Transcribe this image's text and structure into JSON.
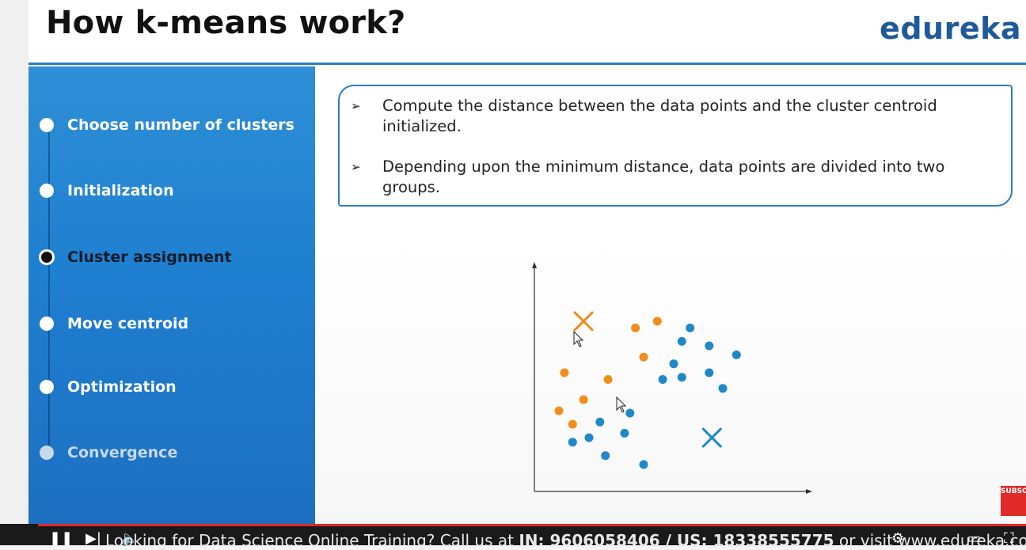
{
  "slide": {
    "title": "How k-means work?",
    "logo": "edureka",
    "colors": {
      "accent": "#2b7dc3",
      "sidebar": "#1f7fd0",
      "orange": "#f28c1a",
      "blue": "#1e88c8"
    }
  },
  "steps": [
    {
      "label": "Choose number of clusters",
      "state": "done"
    },
    {
      "label": "Initialization",
      "state": "done"
    },
    {
      "label": "Cluster assignment",
      "state": "active"
    },
    {
      "label": "Move centroid",
      "state": "upcoming"
    },
    {
      "label": "Optimization",
      "state": "upcoming"
    },
    {
      "label": "Convergence",
      "state": "dim"
    }
  ],
  "bullets": [
    "Compute the distance between the data points and the cluster centroid initialized.",
    "Depending upon the minimum distance, data points are divided into two groups."
  ],
  "chart_data": {
    "type": "scatter",
    "xlim": [
      0,
      10
    ],
    "ylim": [
      0,
      10
    ],
    "grid": false,
    "series": [
      {
        "color": "#f28c1a",
        "points": [
          [
            3.7,
            7.3
          ],
          [
            4.5,
            7.6
          ],
          [
            4.0,
            6.0
          ],
          [
            1.1,
            5.3
          ],
          [
            2.7,
            5.0
          ],
          [
            1.8,
            4.1
          ],
          [
            0.9,
            3.6
          ],
          [
            1.4,
            3.0
          ]
        ]
      },
      {
        "color": "#1e88c8",
        "points": [
          [
            5.7,
            7.3
          ],
          [
            5.4,
            6.7
          ],
          [
            6.4,
            6.5
          ],
          [
            7.4,
            6.1
          ],
          [
            5.1,
            5.7
          ],
          [
            5.4,
            5.1
          ],
          [
            4.7,
            5.0
          ],
          [
            6.4,
            5.3
          ],
          [
            6.9,
            4.6
          ],
          [
            3.5,
            3.5
          ],
          [
            2.4,
            3.1
          ],
          [
            3.3,
            2.6
          ],
          [
            1.4,
            2.2
          ],
          [
            2.0,
            2.4
          ],
          [
            2.6,
            1.6
          ],
          [
            4.0,
            1.2
          ]
        ]
      }
    ],
    "centroids": [
      {
        "color": "#f28c1a",
        "x": 1.8,
        "y": 7.6
      },
      {
        "color": "#1e88c8",
        "x": 6.5,
        "y": 2.4
      }
    ]
  },
  "player": {
    "ticker_prefix": "Looking for Data Science Online Training? Call us at ",
    "ticker_in": "IN: 9606058406 / US: 18338555775",
    "ticker_suffix": " or visit www.edureka.co",
    "subscribe_badge": "SUBSCRIBE"
  }
}
